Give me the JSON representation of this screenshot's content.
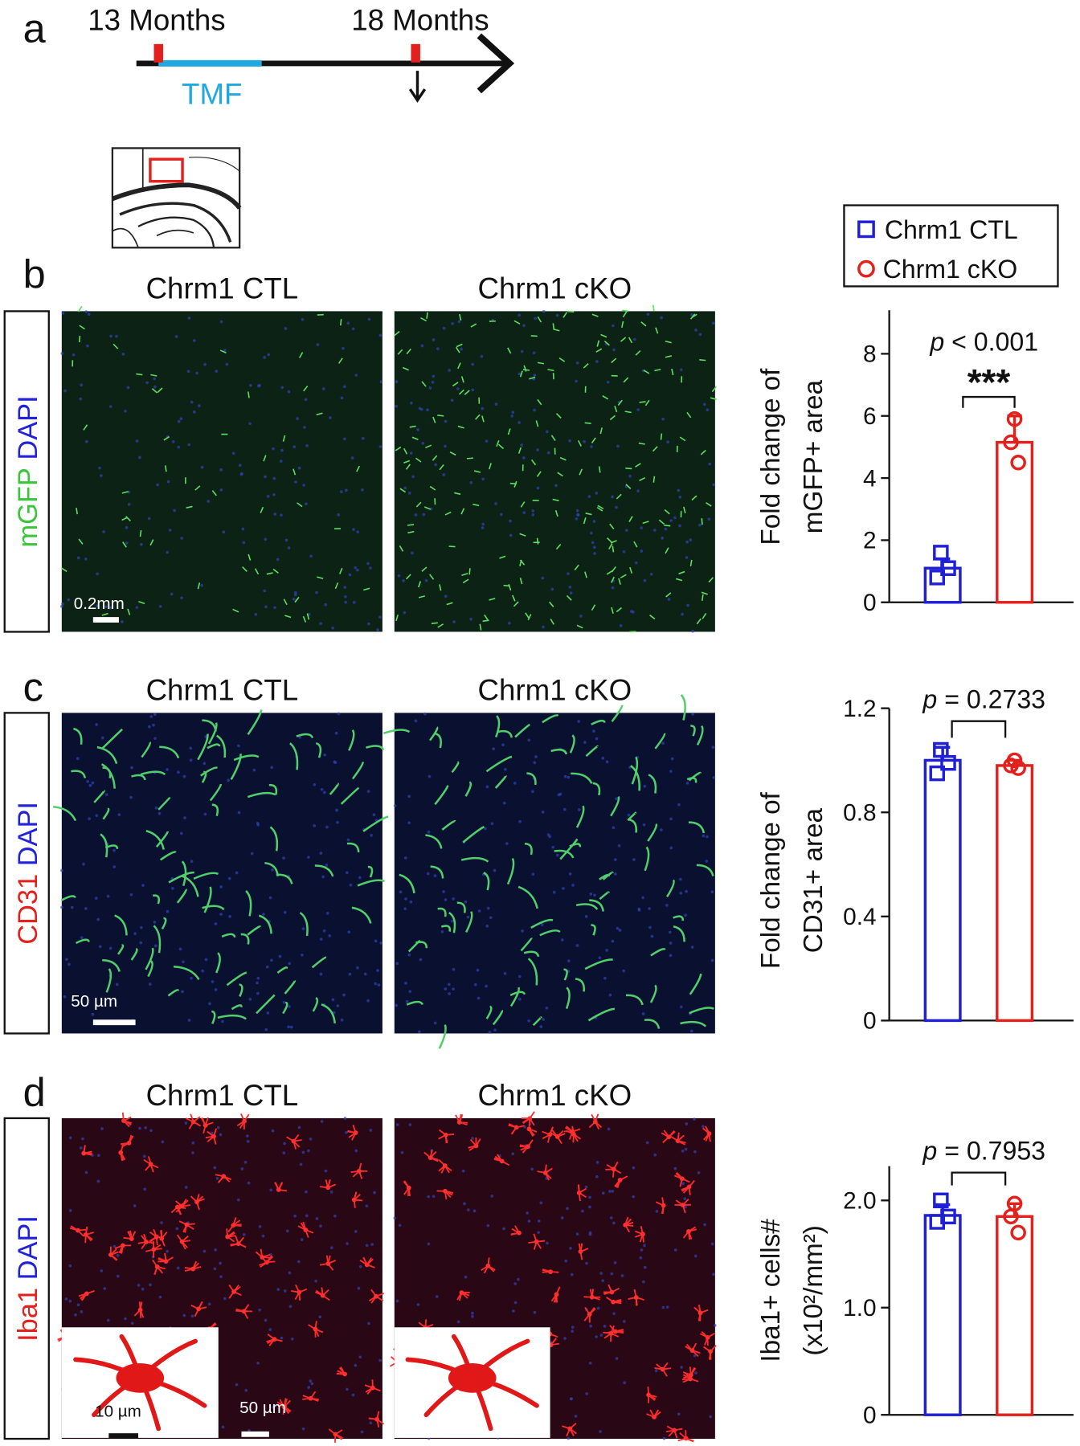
{
  "panel_letters": [
    "a",
    "b",
    "c",
    "d"
  ],
  "timeline": {
    "start": "13 Months",
    "end": "18 Months",
    "treatment": "TMF"
  },
  "groups": [
    "Chrm1 CTL",
    "Chrm1 cKO"
  ],
  "stains": [
    {
      "marker": "mGFP",
      "counter": "DAPI"
    },
    {
      "marker": "CD31",
      "counter": "DAPI"
    },
    {
      "marker": "Iba1",
      "counter": "DAPI"
    }
  ],
  "scale_bars": [
    "0.2mm",
    "50 µm",
    "10 µm",
    "50 µm"
  ],
  "chart_data": [
    {
      "type": "bar",
      "ylabel": [
        "Fold change of",
        "mGFP+ area"
      ],
      "values": [
        1.1,
        5.15
      ],
      "errors": [
        0.3,
        0.85
      ],
      "points": [
        [
          1.6,
          1.1,
          0.8
        ],
        [
          5.9,
          5.15,
          4.5
        ]
      ],
      "colors": [
        "#1f1fd6",
        "#e3201c"
      ],
      "ylim": [
        0,
        9.4
      ],
      "yticks": [
        0,
        2,
        4,
        6,
        8
      ],
      "annotation": [
        "p",
        " < 0.001"
      ],
      "significance": "***"
    },
    {
      "type": "bar",
      "ylabel": [
        "Fold change of",
        "CD31+ area"
      ],
      "values": [
        1.0,
        0.98
      ],
      "errors": [
        0.05,
        0.02
      ],
      "points": [
        [
          1.04,
          0.99,
          0.95
        ],
        [
          1.0,
          0.98,
          0.97
        ]
      ],
      "colors": [
        "#1f1fd6",
        "#e3201c"
      ],
      "ylim": [
        0,
        1.2
      ],
      "yticks": [
        0,
        0.4,
        0.8,
        1.2
      ],
      "annotation": [
        "p",
        " = 0.2733"
      ]
    },
    {
      "type": "bar",
      "ylabel": [
        "Iba1+ cells#",
        "(x10²/mm²)"
      ],
      "values": [
        1.86,
        1.85
      ],
      "errors": [
        0.1,
        0.12
      ],
      "points": [
        [
          2.0,
          1.85,
          1.8
        ],
        [
          1.97,
          1.85,
          1.7
        ]
      ],
      "colors": [
        "#1f1fd6",
        "#e3201c"
      ],
      "ylim": [
        0,
        2.32
      ],
      "yticks": [
        0,
        {
          "value": 1.0,
          "label": "1.0"
        },
        {
          "value": 2.0,
          "label": "2.0"
        }
      ],
      "annotation": [
        "p",
        " = 0.7953"
      ]
    }
  ]
}
